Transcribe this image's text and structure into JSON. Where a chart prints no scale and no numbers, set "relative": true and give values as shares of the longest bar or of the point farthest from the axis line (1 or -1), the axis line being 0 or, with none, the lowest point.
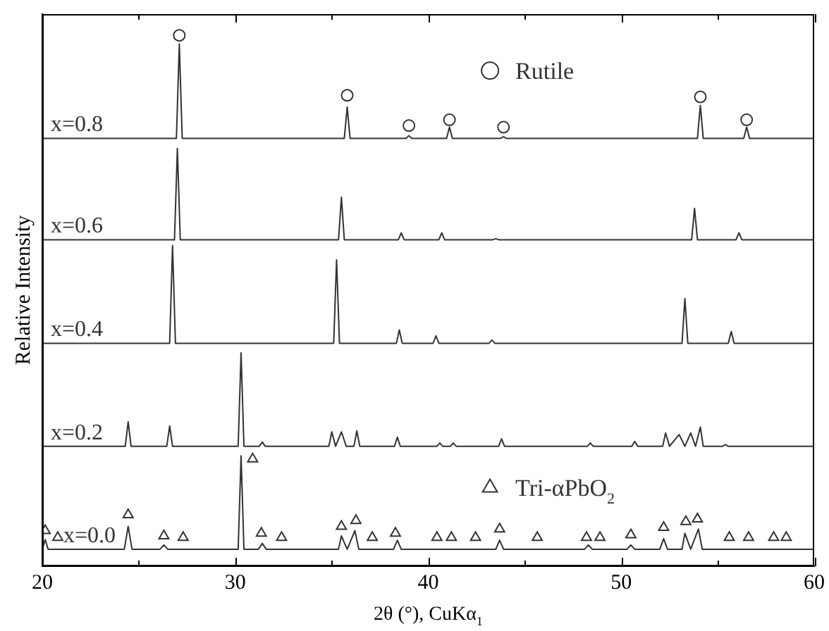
{
  "chart_data": {
    "type": "line",
    "relative": true,
    "xlabel": "2θ (°), CuKα$_{1}$",
    "ylabel": "Relative Intensity",
    "xlim": [
      20,
      60
    ],
    "xticks": [
      20,
      {
        "value": 25,
        "label": null
      },
      30,
      {
        "value": 35,
        "label": null
      },
      40,
      {
        "value": 45,
        "label": null
      },
      50,
      {
        "value": 55,
        "label": null
      },
      60
    ],
    "tick_labels": "x",
    "grid": false,
    "legend": "top right",
    "series": [
      {
        "name": "x=0.8",
        "color": "#333333",
        "x": [
          20,
          26.95,
          27.1,
          27.25,
          35.65,
          35.8,
          35.95,
          38.85,
          39.0,
          39.15,
          40.95,
          41.1,
          41.25,
          43.75,
          43.9,
          44.05,
          53.95,
          54.1,
          54.25,
          56.35,
          56.5,
          56.65,
          60
        ],
        "values": [
          0.806,
          0.806,
          0.984,
          0.806,
          0.806,
          0.865,
          0.806,
          0.806,
          0.811,
          0.806,
          0.806,
          0.827,
          0.806,
          0.806,
          0.809,
          0.806,
          0.806,
          0.868,
          0.806,
          0.806,
          0.827,
          0.806,
          0.806
        ]
      },
      {
        "name": "x=0.6",
        "color": "#333333",
        "x": [
          20,
          26.85,
          27.0,
          27.15,
          35.35,
          35.5,
          35.65,
          38.45,
          38.6,
          38.75,
          40.55,
          40.7,
          40.85,
          43.35,
          43.5,
          43.65,
          53.65,
          53.8,
          53.95,
          55.95,
          56.1,
          56.25,
          60
        ],
        "values": [
          0.615,
          0.615,
          0.787,
          0.615,
          0.615,
          0.695,
          0.615,
          0.615,
          0.628,
          0.615,
          0.615,
          0.628,
          0.615,
          0.615,
          0.617,
          0.615,
          0.615,
          0.674,
          0.615,
          0.615,
          0.628,
          0.615,
          0.615
        ]
      },
      {
        "name": "x=0.4",
        "color": "#333333",
        "x": [
          20,
          26.6,
          26.75,
          26.9,
          35.1,
          35.25,
          35.4,
          38.35,
          38.5,
          38.65,
          40.25,
          40.4,
          40.55,
          43.15,
          43.3,
          43.45,
          53.15,
          53.3,
          53.45,
          55.55,
          55.7,
          55.85,
          60
        ],
        "values": [
          0.42,
          0.42,
          0.604,
          0.42,
          0.42,
          0.577,
          0.42,
          0.42,
          0.445,
          0.42,
          0.42,
          0.434,
          0.42,
          0.42,
          0.426,
          0.42,
          0.42,
          0.504,
          0.42,
          0.42,
          0.442,
          0.42,
          0.42
        ]
      },
      {
        "name": "x=0.2",
        "color": "#333333",
        "x": [
          20,
          24.3,
          24.45,
          24.6,
          26.45,
          26.6,
          26.75,
          30.15,
          30.3,
          30.45,
          31.25,
          31.4,
          31.55,
          34.85,
          35.0,
          35.2,
          35.5,
          35.75,
          36.15,
          36.3,
          36.45,
          38.25,
          38.4,
          38.55,
          40.45,
          40.6,
          40.75,
          41.15,
          41.3,
          41.45,
          43.65,
          43.8,
          43.95,
          48.25,
          48.4,
          48.55,
          50.55,
          50.7,
          50.85,
          52.15,
          52.3,
          52.5,
          53.0,
          53.3,
          53.6,
          53.85,
          54.1,
          54.25,
          55.25,
          55.4,
          55.55,
          60
        ],
        "values": [
          0.226,
          0.226,
          0.272,
          0.226,
          0.226,
          0.264,
          0.226,
          0.226,
          0.402,
          0.226,
          0.226,
          0.234,
          0.226,
          0.226,
          0.253,
          0.226,
          0.253,
          0.226,
          0.226,
          0.255,
          0.226,
          0.226,
          0.243,
          0.226,
          0.226,
          0.232,
          0.226,
          0.226,
          0.232,
          0.226,
          0.226,
          0.24,
          0.226,
          0.226,
          0.232,
          0.226,
          0.226,
          0.235,
          0.226,
          0.226,
          0.251,
          0.226,
          0.248,
          0.226,
          0.251,
          0.226,
          0.262,
          0.226,
          0.226,
          0.229,
          0.226,
          0.226
        ]
      },
      {
        "name": "x=0.0",
        "color": "#333333",
        "x": [
          20,
          20.15,
          20.3,
          24.25,
          24.45,
          24.65,
          26.1,
          26.3,
          26.5,
          30.15,
          30.3,
          30.45,
          31.2,
          31.4,
          31.6,
          35.35,
          35.5,
          35.8,
          36.2,
          36.4,
          38.2,
          38.4,
          38.6,
          43.5,
          43.7,
          43.9,
          48.1,
          48.3,
          48.5,
          50.3,
          50.5,
          50.7,
          52.0,
          52.2,
          52.4,
          53.15,
          53.3,
          53.6,
          54.0,
          54.2,
          60
        ],
        "values": [
          0.032,
          0.05,
          0.032,
          0.032,
          0.075,
          0.032,
          0.032,
          0.04,
          0.032,
          0.032,
          0.208,
          0.032,
          0.032,
          0.043,
          0.032,
          0.032,
          0.057,
          0.032,
          0.067,
          0.032,
          0.032,
          0.049,
          0.032,
          0.032,
          0.049,
          0.032,
          0.032,
          0.04,
          0.032,
          0.032,
          0.04,
          0.032,
          0.032,
          0.052,
          0.032,
          0.032,
          0.062,
          0.032,
          0.07,
          0.032,
          0.032
        ]
      },
      {
        "name": "Rutile",
        "type": "scatter",
        "marker": "circle",
        "color": "#333333",
        "x": [
          27.1,
          35.8,
          39.0,
          41.1,
          43.9,
          54.1,
          56.5
        ],
        "values": [
          1.0,
          0.887,
          0.83,
          0.841,
          0.827,
          0.884,
          0.841
        ]
      },
      {
        "name": "Tri-αPbO$_{2}$",
        "type": "scatter",
        "marker": "triangle",
        "color": "#333333",
        "x": [
          20.15,
          20.8,
          24.45,
          26.3,
          27.3,
          30.9,
          31.35,
          32.4,
          35.5,
          36.25,
          37.1,
          38.3,
          40.45,
          41.2,
          42.45,
          43.7,
          45.65,
          48.2,
          48.9,
          50.5,
          52.2,
          53.35,
          53.95,
          55.6,
          56.6,
          57.9,
          58.55
        ],
        "values": [
          0.067,
          0.054,
          0.097,
          0.057,
          0.054,
          0.202,
          0.062,
          0.054,
          0.075,
          0.086,
          0.054,
          0.062,
          0.054,
          0.054,
          0.054,
          0.07,
          0.054,
          0.054,
          0.054,
          0.059,
          0.073,
          0.084,
          0.089,
          0.054,
          0.054,
          0.054,
          0.054
        ]
      }
    ]
  }
}
